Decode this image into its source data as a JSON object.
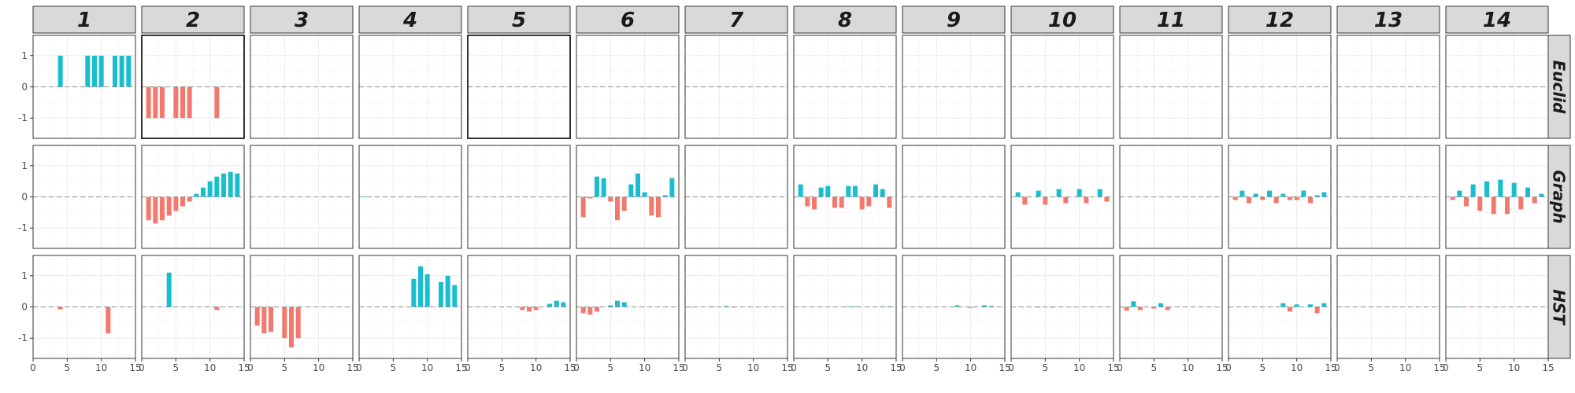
{
  "chart_data": {
    "type": "bar",
    "facet_columns": [
      "1",
      "2",
      "3",
      "4",
      "5",
      "6",
      "7",
      "8",
      "9",
      "10",
      "11",
      "12",
      "13",
      "14"
    ],
    "facet_rows": [
      "Euclid",
      "Graph",
      "HST"
    ],
    "x_ticks": [
      0,
      5,
      10,
      15
    ],
    "x_tick_labels": [
      "0",
      "5",
      "10",
      "15"
    ],
    "xlim": [
      0,
      15
    ],
    "y_ticks": [
      -1,
      0,
      1
    ],
    "y_tick_labels": [
      "-1",
      "0",
      "1"
    ],
    "ylim": [
      -1.65,
      1.65
    ],
    "reference_line": 0,
    "grid": true,
    "colors": {
      "positive": "#17BECF",
      "negative": "#F3786E",
      "strip": "#d9d9d9",
      "panel_border": "#333333",
      "grid": "#ebebeb",
      "refline": "#8c8c8c"
    },
    "highlighted_panels": [
      [
        "Euclid",
        "2"
      ],
      [
        "Euclid",
        "5"
      ]
    ],
    "panels": {
      "Euclid": {
        "1": [
          [
            4,
            1
          ],
          [
            8,
            1
          ],
          [
            9,
            1
          ],
          [
            10,
            1
          ],
          [
            12,
            1
          ],
          [
            13,
            1
          ],
          [
            14,
            1
          ]
        ],
        "2": [
          [
            1,
            -1
          ],
          [
            2,
            -1
          ],
          [
            3,
            -1
          ],
          [
            5,
            -1
          ],
          [
            6,
            -1
          ],
          [
            7,
            -1
          ],
          [
            11,
            -1
          ]
        ],
        "3": [],
        "4": [],
        "5": [],
        "6": [],
        "7": [],
        "8": [],
        "9": [],
        "10": [],
        "11": [],
        "12": [],
        "13": [],
        "14": []
      },
      "Graph": {
        "1": [],
        "2": [
          [
            1,
            -0.75
          ],
          [
            2,
            -0.85
          ],
          [
            3,
            -0.75
          ],
          [
            4,
            -0.6
          ],
          [
            5,
            -0.45
          ],
          [
            6,
            -0.3
          ],
          [
            7,
            -0.15
          ],
          [
            8,
            0.1
          ],
          [
            9,
            0.3
          ],
          [
            10,
            0.5
          ],
          [
            11,
            0.65
          ],
          [
            12,
            0.75
          ],
          [
            13,
            0.8
          ],
          [
            14,
            0.75
          ]
        ],
        "3": [],
        "4": [
          [
            1,
            0.01
          ],
          [
            9,
            0.01
          ]
        ],
        "5": [],
        "6": [
          [
            1,
            -0.65
          ],
          [
            2,
            -0.05
          ],
          [
            3,
            0.65
          ],
          [
            4,
            0.6
          ],
          [
            5,
            -0.15
          ],
          [
            6,
            -0.75
          ],
          [
            7,
            -0.45
          ],
          [
            8,
            0.4
          ],
          [
            9,
            0.75
          ],
          [
            10,
            0.15
          ],
          [
            11,
            -0.6
          ],
          [
            12,
            -0.65
          ],
          [
            13,
            0.05
          ],
          [
            14,
            0.6
          ]
        ],
        "7": [],
        "8": [
          [
            1,
            0.4
          ],
          [
            2,
            -0.3
          ],
          [
            3,
            -0.4
          ],
          [
            4,
            0.3
          ],
          [
            5,
            0.35
          ],
          [
            6,
            -0.35
          ],
          [
            7,
            -0.35
          ],
          [
            8,
            0.35
          ],
          [
            9,
            0.35
          ],
          [
            10,
            -0.4
          ],
          [
            11,
            -0.3
          ],
          [
            12,
            0.4
          ],
          [
            13,
            0.25
          ],
          [
            14,
            -0.35
          ]
        ],
        "9": [],
        "10": [
          [
            1,
            0.15
          ],
          [
            2,
            -0.25
          ],
          [
            4,
            0.2
          ],
          [
            5,
            -0.25
          ],
          [
            7,
            0.25
          ],
          [
            8,
            -0.2
          ],
          [
            10,
            0.25
          ],
          [
            11,
            -0.2
          ],
          [
            13,
            0.25
          ],
          [
            14,
            -0.15
          ]
        ],
        "11": [],
        "12": [
          [
            1,
            -0.1
          ],
          [
            2,
            0.2
          ],
          [
            3,
            -0.2
          ],
          [
            4,
            0.1
          ],
          [
            5,
            -0.1
          ],
          [
            6,
            0.2
          ],
          [
            7,
            -0.2
          ],
          [
            8,
            0.1
          ],
          [
            9,
            -0.1
          ],
          [
            10,
            -0.1
          ],
          [
            11,
            0.2
          ],
          [
            12,
            -0.2
          ],
          [
            13,
            0.05
          ],
          [
            14,
            0.15
          ]
        ],
        "13": [],
        "14": [
          [
            1,
            -0.1
          ],
          [
            2,
            0.2
          ],
          [
            3,
            -0.3
          ],
          [
            4,
            0.4
          ],
          [
            5,
            -0.45
          ],
          [
            6,
            0.5
          ],
          [
            7,
            -0.55
          ],
          [
            8,
            0.55
          ],
          [
            9,
            -0.55
          ],
          [
            10,
            0.45
          ],
          [
            11,
            -0.4
          ],
          [
            12,
            0.3
          ],
          [
            13,
            -0.2
          ],
          [
            14,
            0.1
          ]
        ]
      },
      "HST": {
        "1": [
          [
            4,
            -0.08
          ],
          [
            11,
            -0.85
          ]
        ],
        "2": [
          [
            4,
            1.1
          ],
          [
            11,
            -0.1
          ]
        ],
        "3": [
          [
            1,
            -0.6
          ],
          [
            2,
            -0.85
          ],
          [
            3,
            -0.8
          ],
          [
            5,
            -1.0
          ],
          [
            6,
            -1.3
          ],
          [
            7,
            -1.0
          ]
        ],
        "4": [
          [
            8,
            0.9
          ],
          [
            9,
            1.3
          ],
          [
            10,
            1.05
          ],
          [
            12,
            0.8
          ],
          [
            13,
            1.0
          ],
          [
            14,
            0.7
          ]
        ],
        "5": [
          [
            8,
            -0.1
          ],
          [
            9,
            -0.15
          ],
          [
            10,
            -0.1
          ],
          [
            12,
            0.1
          ],
          [
            13,
            0.2
          ],
          [
            14,
            0.15
          ]
        ],
        "6": [
          [
            1,
            -0.2
          ],
          [
            2,
            -0.25
          ],
          [
            3,
            -0.15
          ],
          [
            5,
            0.05
          ],
          [
            6,
            0.2
          ],
          [
            7,
            0.15
          ]
        ],
        "7": [
          [
            1,
            -0.02
          ],
          [
            4,
            0.02
          ],
          [
            6,
            0.03
          ],
          [
            7,
            -0.02
          ]
        ],
        "8": [
          [
            8,
            0.02
          ],
          [
            9,
            0.02
          ],
          [
            13,
            0.02
          ],
          [
            14,
            0.02
          ]
        ],
        "9": [
          [
            8,
            0.05
          ],
          [
            10,
            -0.03
          ],
          [
            12,
            0.05
          ],
          [
            13,
            0.03
          ]
        ],
        "10": [
          [
            4,
            -0.02
          ],
          [
            6,
            -0.02
          ]
        ],
        "11": [
          [
            1,
            -0.12
          ],
          [
            2,
            0.18
          ],
          [
            3,
            -0.1
          ],
          [
            5,
            -0.05
          ],
          [
            6,
            0.12
          ],
          [
            7,
            -0.1
          ]
        ],
        "12": [
          [
            8,
            0.12
          ],
          [
            9,
            -0.15
          ],
          [
            10,
            0.08
          ],
          [
            12,
            0.08
          ],
          [
            13,
            -0.2
          ],
          [
            14,
            0.12
          ]
        ],
        "13": [],
        "14": [
          [
            1,
            0.01
          ],
          [
            2,
            0.01
          ]
        ]
      }
    }
  }
}
